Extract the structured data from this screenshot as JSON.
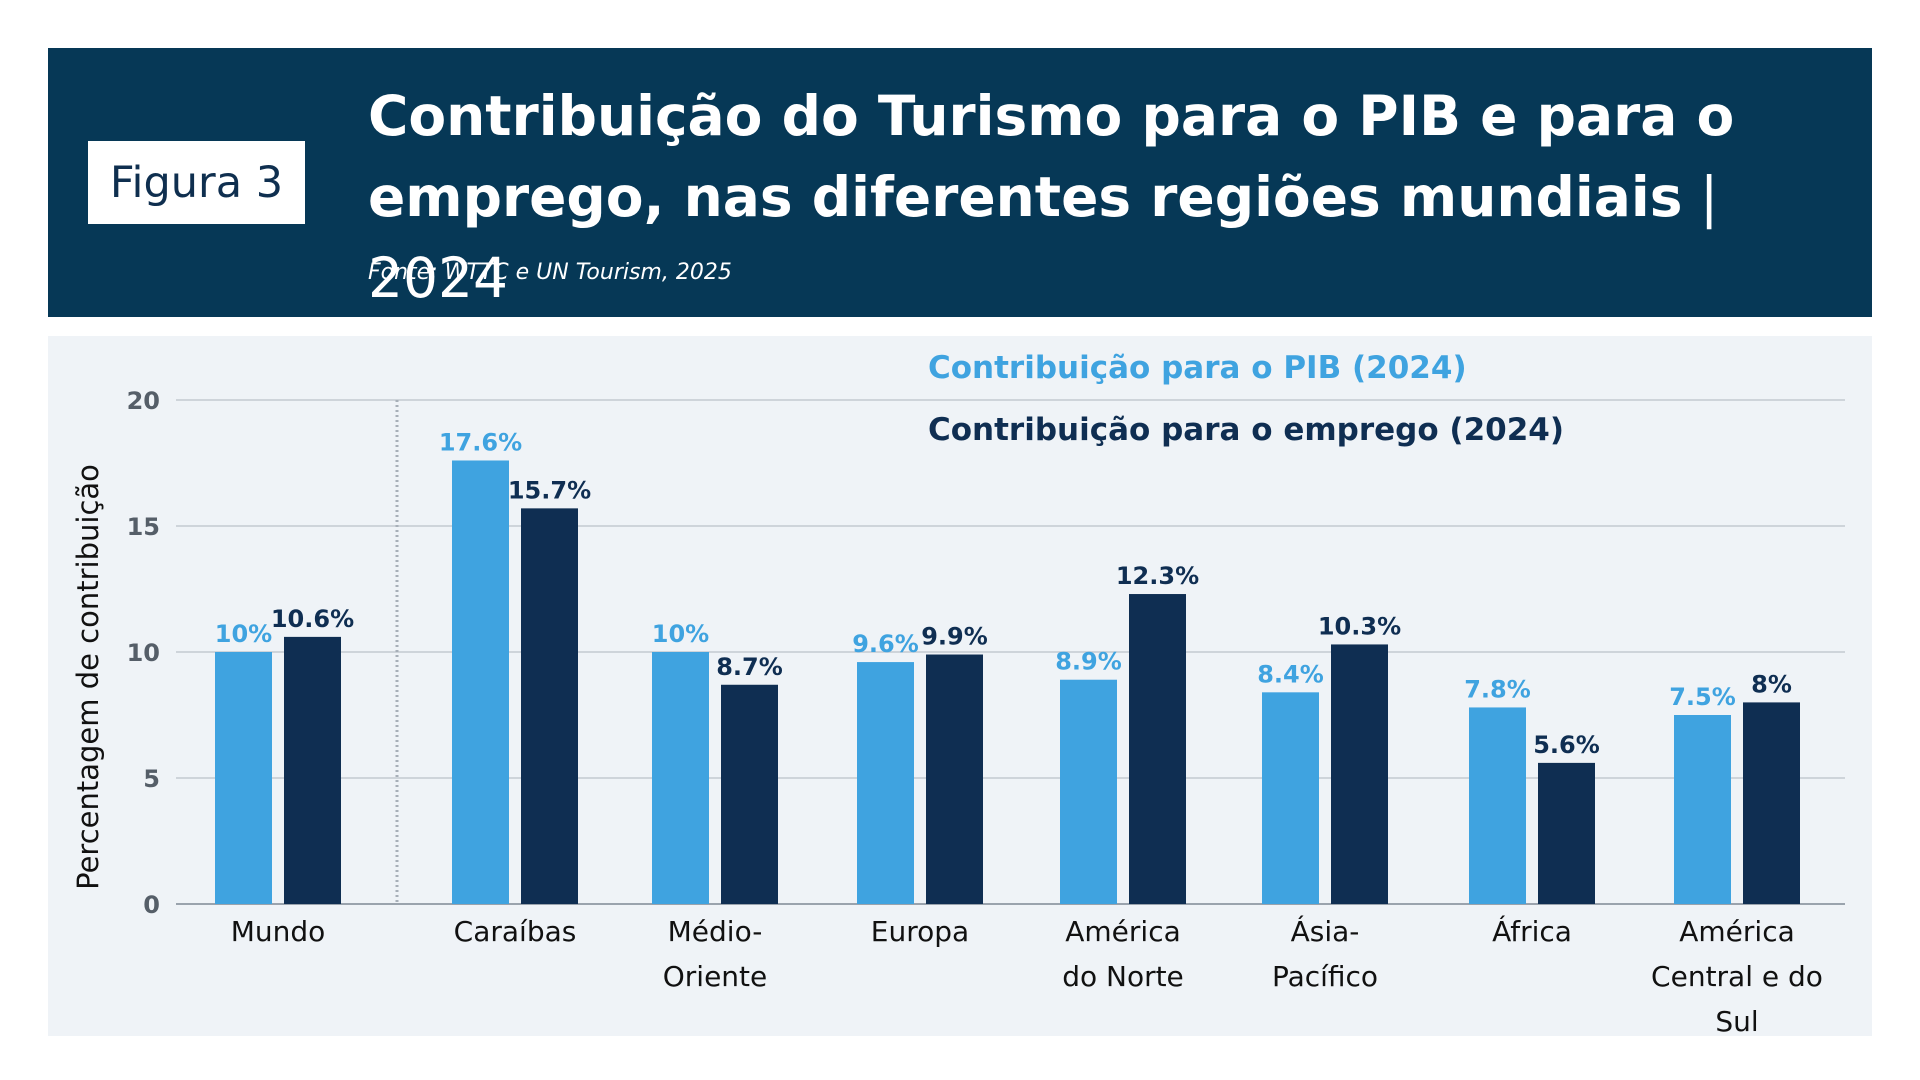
{
  "header": {
    "badge": "Figura 3",
    "title_main": "Contribuição do Turismo para o PIB e para o emprego, nas diferentes regiões mundiais",
    "title_sep": " | ",
    "title_year": "2024",
    "source": "Fonte: WTTC e UN Tourism, 2025"
  },
  "colors": {
    "header_bg": "#063856",
    "panel_bg": "#eff3f7",
    "pib": "#3fa3e0",
    "emprego": "#0f2e52"
  },
  "chart_data": {
    "type": "bar",
    "title": "",
    "xlabel": "",
    "ylabel": "Percentagem de contribuição",
    "ylim": [
      0,
      20
    ],
    "yticks": [
      0,
      5,
      10,
      15,
      20
    ],
    "grid": true,
    "legend_position": "top-right",
    "categories": [
      [
        "Mundo"
      ],
      [
        "Caraíbas"
      ],
      [
        "Médio-",
        "Oriente"
      ],
      [
        "Europa"
      ],
      [
        "América",
        "do Norte"
      ],
      [
        "Ásia-",
        "Pacífico"
      ],
      [
        "África"
      ],
      [
        "América",
        "Central e do",
        "Sul"
      ]
    ],
    "series": [
      {
        "name": "Contribuição para o PIB (2024)",
        "values": [
          10,
          17.6,
          10,
          9.6,
          8.9,
          8.4,
          7.8,
          7.5
        ],
        "labels": [
          "10%",
          "17.6%",
          "10%",
          "9.6%",
          "8.9%",
          "8.4%",
          "7.8%",
          "7.5%"
        ]
      },
      {
        "name": "Contribuição para o emprego (2024)",
        "values": [
          10.6,
          15.7,
          8.7,
          9.9,
          12.3,
          10.3,
          5.6,
          8
        ],
        "labels": [
          "10.6%",
          "15.7%",
          "8.7%",
          "9.9%",
          "12.3%",
          "10.3%",
          "5.6%",
          "8%"
        ]
      }
    ]
  }
}
